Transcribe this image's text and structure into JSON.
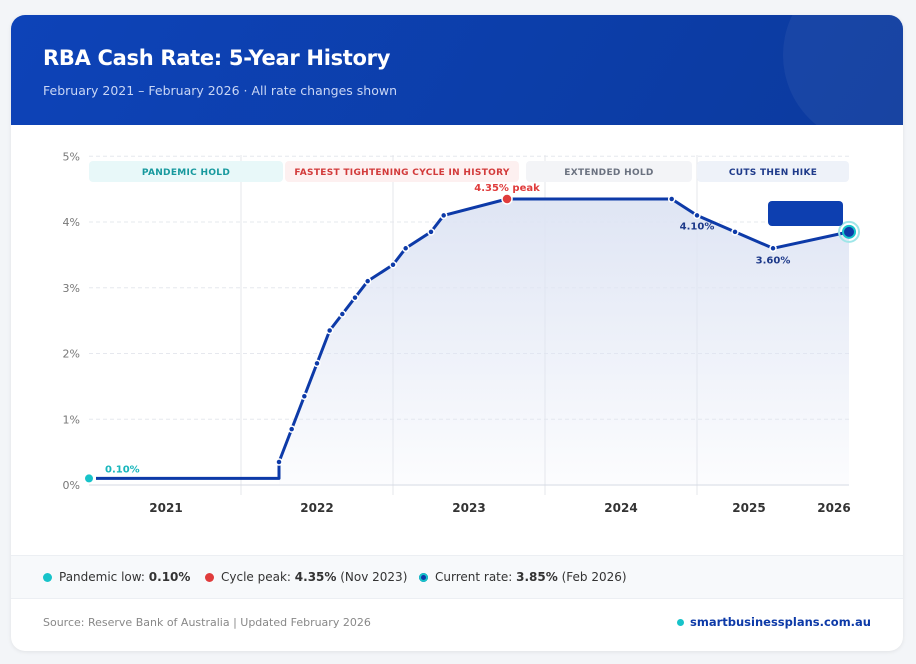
{
  "header": {
    "title": "RBA Cash Rate: 5-Year History",
    "subtitle": "February 2021 – February 2026 · All rate changes shown"
  },
  "colors": {
    "line": "#0d3aa8",
    "teal": "#17c3c9",
    "red": "#e03c3c",
    "header": "#0d43b8"
  },
  "chart_data": {
    "type": "line",
    "title": "RBA Cash Rate: 5-Year History",
    "ylim": [
      0,
      5
    ],
    "y_ticks": [
      "0%",
      "1%",
      "2%",
      "3%",
      "4%",
      "5%"
    ],
    "x_ticks": [
      "2021",
      "2022",
      "2023",
      "2024",
      "2025",
      "2026"
    ],
    "grid": true,
    "series": [
      {
        "points": [
          {
            "date": "2021-02",
            "value": 0.1
          },
          {
            "date": "2022-05",
            "value": 0.1
          },
          {
            "date": "2022-05",
            "value": 0.35
          },
          {
            "date": "2022-06",
            "value": 0.85
          },
          {
            "date": "2022-07",
            "value": 1.35
          },
          {
            "date": "2022-08",
            "value": 1.85
          },
          {
            "date": "2022-09",
            "value": 2.35
          },
          {
            "date": "2022-10",
            "value": 2.6
          },
          {
            "date": "2022-11",
            "value": 2.85
          },
          {
            "date": "2022-12",
            "value": 3.1
          },
          {
            "date": "2023-02",
            "value": 3.35
          },
          {
            "date": "2023-03",
            "value": 3.6
          },
          {
            "date": "2023-05",
            "value": 3.85
          },
          {
            "date": "2023-06",
            "value": 4.1
          },
          {
            "date": "2023-11",
            "value": 4.35
          },
          {
            "date": "2024-12",
            "value": 4.35
          },
          {
            "date": "2025-02",
            "value": 4.1
          },
          {
            "date": "2025-05",
            "value": 3.85
          },
          {
            "date": "2025-08",
            "value": 3.6
          },
          {
            "date": "2026-02",
            "value": 3.85
          }
        ]
      }
    ],
    "phases": [
      {
        "label": "PANDEMIC HOLD",
        "from": "2021-02",
        "to": "2022-04",
        "bg": "#e8f8f9",
        "color": "#17999e"
      },
      {
        "label": "FASTEST TIGHTENING CYCLE IN HISTORY",
        "from": "2022-04",
        "to": "2023-11",
        "bg": "#fdf0f0",
        "color": "#d23a3a"
      },
      {
        "label": "EXTENDED HOLD",
        "from": "2023-11",
        "to": "2025-01",
        "bg": "#f3f4f7",
        "color": "#6b7280"
      },
      {
        "label": "CUTS THEN HIKE",
        "from": "2025-02",
        "to": "2026-02",
        "bg": "#eef2f9",
        "color": "#1e3a8a"
      }
    ],
    "annotations": [
      {
        "text": "0.10%",
        "date": "2021-02",
        "value": 0.1,
        "color": "#17b6bc"
      },
      {
        "text": "4.35% peak",
        "date": "2023-11",
        "value": 4.35,
        "color": "#e03c3c"
      },
      {
        "text": "4.10%",
        "date": "2025-02",
        "value": 4.1,
        "color": "#1e3a8a"
      },
      {
        "text": "3.60%",
        "date": "2025-08",
        "value": 3.6,
        "color": "#1e3a8a"
      }
    ]
  },
  "legend": [
    {
      "label": "Pandemic low: ",
      "value": "0.10%",
      "note": "",
      "color": "#17c3c9"
    },
    {
      "label": "Cycle peak: ",
      "value": "4.35%",
      "note": " (Nov 2023)",
      "color": "#e03c3c"
    },
    {
      "label": "Current rate: ",
      "value": "3.85%",
      "note": " (Feb 2026)",
      "color": "#0d3aa8"
    }
  ],
  "footer": {
    "source": "Source: Reserve Bank of Australia | Updated February 2026",
    "site": "smartbusinessplans.com.au"
  }
}
